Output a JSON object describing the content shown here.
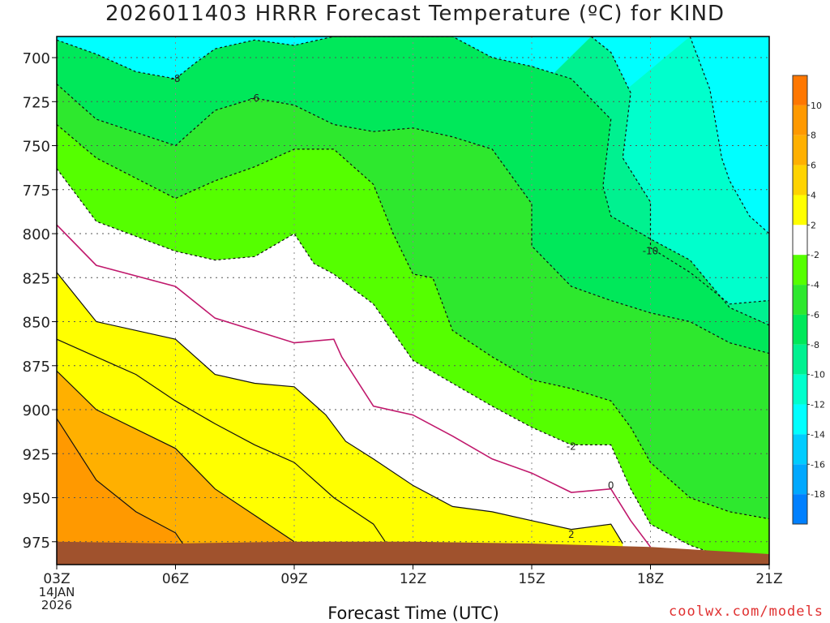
{
  "title": "2026011403 HRRR Forecast Temperature (ºC) for KIND",
  "credit": "coolwx.com/models",
  "chart_data": {
    "type": "contour",
    "title": "2026011403 HRRR Forecast Temperature (ºC) for KIND",
    "xlabel": "Forecast Time (UTC)",
    "ylabel": "",
    "x_ticks": [
      "03Z",
      "06Z",
      "09Z",
      "12Z",
      "15Z",
      "18Z",
      "21Z"
    ],
    "x_start_label": [
      "03Z",
      "14JAN",
      "2026"
    ],
    "x_range_hours": [
      3,
      21
    ],
    "y_ticks": [
      700,
      725,
      750,
      775,
      800,
      825,
      850,
      875,
      900,
      925,
      950,
      975
    ],
    "ylim": [
      688,
      988
    ],
    "units": "ºC",
    "colorbar": {
      "labels": [
        10,
        8,
        6,
        4,
        2,
        -2,
        -4,
        -6,
        -8,
        -10,
        -12,
        -14,
        -16,
        -18
      ],
      "bins": [
        {
          "range": [
            10,
            12
          ],
          "color": "#ff7700"
        },
        {
          "range": [
            8,
            10
          ],
          "color": "#ff9900"
        },
        {
          "range": [
            6,
            8
          ],
          "color": "#ffb000"
        },
        {
          "range": [
            4,
            6
          ],
          "color": "#ffd300"
        },
        {
          "range": [
            2,
            4
          ],
          "color": "#ffff00"
        },
        {
          "range": [
            -2,
            2
          ],
          "color": "#ffffff"
        },
        {
          "range": [
            -4,
            -2
          ],
          "color": "#55ff00"
        },
        {
          "range": [
            -6,
            -4
          ],
          "color": "#2ee82e"
        },
        {
          "range": [
            -8,
            -6
          ],
          "color": "#00e85a"
        },
        {
          "range": [
            -10,
            -8
          ],
          "color": "#00f190"
        },
        {
          "range": [
            -12,
            -10
          ],
          "color": "#00ffcc"
        },
        {
          "range": [
            -14,
            -12
          ],
          "color": "#00ffff"
        },
        {
          "range": [
            -16,
            -14
          ],
          "color": "#00ccff"
        },
        {
          "range": [
            -18,
            -16
          ],
          "color": "#00a8ff"
        },
        {
          "range": [
            -20,
            -18
          ],
          "color": "#0080ff"
        }
      ]
    },
    "contour_labels": [
      {
        "text": "-8",
        "time": 6.0,
        "pressure": 712
      },
      {
        "text": "-6",
        "time": 8.0,
        "pressure": 723
      },
      {
        "text": "-10",
        "time": 18.0,
        "pressure": 810
      },
      {
        "text": "-2",
        "time": 16.0,
        "pressure": 921
      },
      {
        "text": "0",
        "time": 17.0,
        "pressure": 943
      },
      {
        "text": "2",
        "time": 16.0,
        "pressure": 971
      }
    ],
    "contours": [
      {
        "level": 2,
        "points": [
          [
            3,
            822
          ],
          [
            4,
            850
          ],
          [
            6,
            860
          ],
          [
            7,
            880
          ],
          [
            8,
            885
          ],
          [
            9,
            887
          ],
          [
            9.8,
            903
          ],
          [
            10.3,
            918
          ],
          [
            11,
            928
          ],
          [
            12,
            943
          ],
          [
            13,
            955
          ],
          [
            14,
            958
          ],
          [
            15,
            963
          ],
          [
            16,
            968
          ],
          [
            17,
            965
          ],
          [
            17.3,
            976
          ]
        ]
      },
      {
        "level": 0,
        "points": [
          [
            3,
            795
          ],
          [
            4,
            818
          ],
          [
            6,
            830
          ],
          [
            7,
            848
          ],
          [
            8,
            855
          ],
          [
            9,
            862
          ],
          [
            10,
            860
          ],
          [
            10.2,
            870
          ],
          [
            11,
            898
          ],
          [
            12,
            903
          ],
          [
            13,
            915
          ],
          [
            14,
            928
          ],
          [
            15,
            936
          ],
          [
            16,
            947
          ],
          [
            17,
            945
          ],
          [
            17.5,
            963
          ],
          [
            18,
            978
          ]
        ]
      },
      {
        "level": -2,
        "points": [
          [
            3,
            763
          ],
          [
            4,
            793
          ],
          [
            6,
            810
          ],
          [
            7,
            815
          ],
          [
            8,
            813
          ],
          [
            9,
            800
          ],
          [
            9.5,
            817
          ],
          [
            10,
            823
          ],
          [
            11,
            840
          ],
          [
            12,
            872
          ],
          [
            13,
            885
          ],
          [
            14,
            898
          ],
          [
            15,
            910
          ],
          [
            16,
            920
          ],
          [
            17,
            920
          ],
          [
            17.5,
            945
          ],
          [
            18,
            965
          ],
          [
            19,
            977
          ],
          [
            20,
            985
          ],
          [
            21,
            988
          ]
        ]
      },
      {
        "level": -4,
        "points": [
          [
            3,
            738
          ],
          [
            4,
            757
          ],
          [
            6,
            780
          ],
          [
            7,
            770
          ],
          [
            8,
            762
          ],
          [
            9,
            752
          ],
          [
            10,
            752
          ],
          [
            11,
            772
          ],
          [
            11.5,
            800
          ],
          [
            12,
            823
          ],
          [
            12.5,
            825
          ],
          [
            13,
            855
          ],
          [
            14,
            870
          ],
          [
            15,
            883
          ],
          [
            16,
            888
          ],
          [
            17,
            895
          ],
          [
            17.5,
            910
          ],
          [
            18,
            930
          ],
          [
            19,
            950
          ],
          [
            20,
            958
          ],
          [
            21,
            962
          ]
        ]
      },
      {
        "level": -6,
        "points": [
          [
            3,
            715
          ],
          [
            4,
            735
          ],
          [
            6,
            750
          ],
          [
            7,
            730
          ],
          [
            8,
            723
          ],
          [
            9,
            727
          ],
          [
            10,
            738
          ],
          [
            11,
            742
          ],
          [
            12,
            740
          ],
          [
            13,
            745
          ],
          [
            14,
            752
          ],
          [
            15,
            783
          ],
          [
            15,
            807
          ],
          [
            16,
            830
          ],
          [
            17,
            838
          ],
          [
            18,
            845
          ],
          [
            19,
            850
          ],
          [
            20,
            862
          ],
          [
            21,
            868
          ]
        ]
      },
      {
        "level": -8,
        "points": [
          [
            3,
            690
          ],
          [
            4,
            698
          ],
          [
            5,
            708
          ],
          [
            6,
            712
          ],
          [
            6.5,
            703
          ],
          [
            7,
            695
          ],
          [
            8,
            690
          ],
          [
            9,
            693
          ],
          [
            10,
            688
          ],
          [
            13,
            688
          ],
          [
            14,
            700
          ],
          [
            15,
            705
          ],
          [
            16,
            712
          ],
          [
            17,
            735
          ],
          [
            16.8,
            773
          ],
          [
            17,
            790
          ],
          [
            18,
            803
          ],
          [
            19,
            815
          ],
          [
            20,
            842
          ],
          [
            21,
            852
          ]
        ]
      },
      {
        "level": -10,
        "points": [
          [
            16.5,
            688
          ],
          [
            17,
            697
          ],
          [
            17.5,
            720
          ],
          [
            17.3,
            757
          ],
          [
            18,
            782
          ],
          [
            18,
            808
          ],
          [
            19,
            822
          ],
          [
            20,
            840
          ],
          [
            21,
            838
          ]
        ]
      },
      {
        "level": -12,
        "points": [
          [
            19,
            688
          ],
          [
            19.5,
            718
          ],
          [
            19.8,
            757
          ],
          [
            20,
            770
          ],
          [
            20.5,
            790
          ],
          [
            21,
            800
          ]
        ]
      }
    ]
  }
}
